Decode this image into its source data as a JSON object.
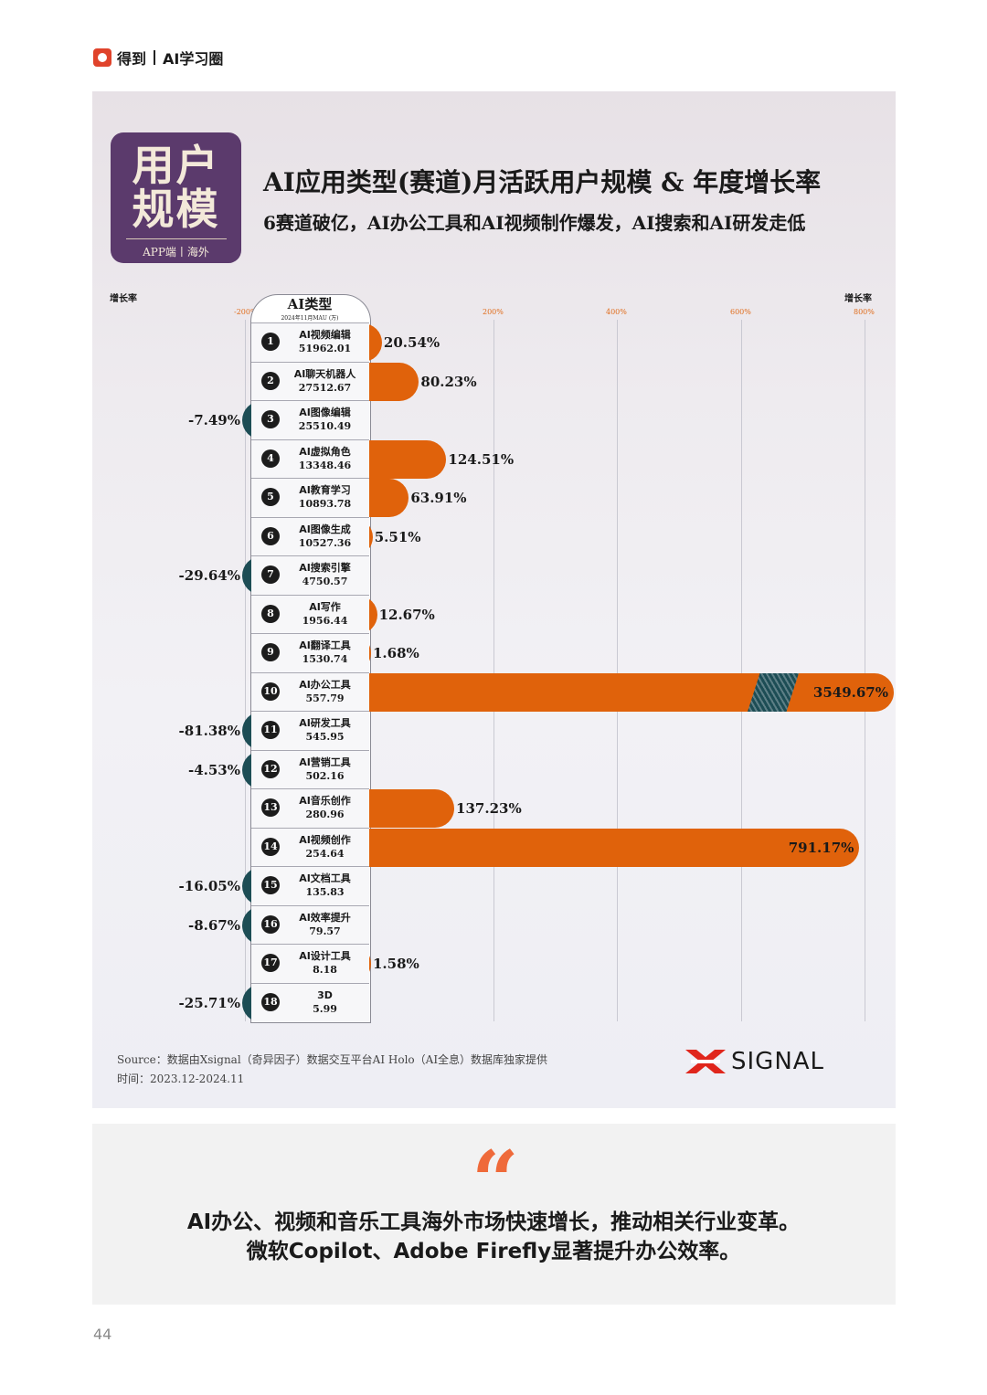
{
  "header": {
    "brand": "得到",
    "sub": "AI学习圈"
  },
  "badge": {
    "line1": "用户",
    "line2": "规模",
    "line3": "APP端丨海外"
  },
  "title": "AI应用类型(赛道)月活跃用户规模 & 年度增长率",
  "subtitle": "6赛道破亿，AI办公工具和AI视频制作爆发，AI搜索和AI研发走低",
  "column_header": {
    "title": "AI类型",
    "subtitle": "2024年11月MAU (万)"
  },
  "axis": {
    "left_title": "增长率",
    "right_title": "增长率"
  },
  "chart_data": {
    "type": "bar",
    "orientation": "horizontal",
    "title": "AI应用类型(赛道)月活跃用户规模 & 年度增长率",
    "xlabel": "增长率",
    "xlim": [
      -200,
      800
    ],
    "x_ticks": [
      "-200%",
      "200%",
      "400%",
      "600%",
      "800%"
    ],
    "tick_values": [
      -200,
      200,
      400,
      600,
      800
    ],
    "grid": true,
    "categories": [
      {
        "rank": "1",
        "name": "AI视频编辑",
        "mau": "51962.01",
        "growth": 20.54,
        "label": "20.54%"
      },
      {
        "rank": "2",
        "name": "AI聊天机器人",
        "mau": "27512.67",
        "growth": 80.23,
        "label": "80.23%"
      },
      {
        "rank": "3",
        "name": "AI图像编辑",
        "mau": "25510.49",
        "growth": -7.49,
        "label": "-7.49%"
      },
      {
        "rank": "4",
        "name": "AI虚拟角色",
        "mau": "13348.46",
        "growth": 124.51,
        "label": "124.51%"
      },
      {
        "rank": "5",
        "name": "AI教育学习",
        "mau": "10893.78",
        "growth": 63.91,
        "label": "63.91%"
      },
      {
        "rank": "6",
        "name": "AI图像生成",
        "mau": "10527.36",
        "growth": 5.51,
        "label": "5.51%"
      },
      {
        "rank": "7",
        "name": "AI搜索引擎",
        "mau": "4750.57",
        "growth": -29.64,
        "label": "-29.64%"
      },
      {
        "rank": "8",
        "name": "AI写作",
        "mau": "1956.44",
        "growth": 12.67,
        "label": "12.67%"
      },
      {
        "rank": "9",
        "name": "AI翻译工具",
        "mau": "1530.74",
        "growth": 1.68,
        "label": "1.68%"
      },
      {
        "rank": "10",
        "name": "AI办公工具",
        "mau": "557.79",
        "growth": 3549.67,
        "label": "3549.67%",
        "broken_axis": true
      },
      {
        "rank": "11",
        "name": "AI研发工具",
        "mau": "545.95",
        "growth": -81.38,
        "label": "-81.38%"
      },
      {
        "rank": "12",
        "name": "AI营销工具",
        "mau": "502.16",
        "growth": -4.53,
        "label": "-4.53%"
      },
      {
        "rank": "13",
        "name": "AI音乐创作",
        "mau": "280.96",
        "growth": 137.23,
        "label": "137.23%"
      },
      {
        "rank": "14",
        "name": "AI视频创作",
        "mau": "254.64",
        "growth": 791.17,
        "label": "791.17%"
      },
      {
        "rank": "15",
        "name": "AI文档工具",
        "mau": "135.83",
        "growth": -16.05,
        "label": "-16.05%"
      },
      {
        "rank": "16",
        "name": "AI效率提升",
        "mau": "79.57",
        "growth": -8.67,
        "label": "-8.67%"
      },
      {
        "rank": "17",
        "name": "AI设计工具",
        "mau": "8.18",
        "growth": 1.58,
        "label": "1.58%"
      },
      {
        "rank": "18",
        "name": "3D",
        "mau": "5.99",
        "growth": -25.71,
        "label": "-25.71%"
      }
    ],
    "colors": {
      "positive": "#e0620b",
      "negative": "#1d4d55",
      "tick": "#e06b1a"
    }
  },
  "footer": {
    "source": "Source：数据由Xsignal（奇异因子）数据交互平台AI Holo（AI全息）数据库独家提供",
    "period": "时间：2023.12-2024.11",
    "logo_text": "SIGNAL"
  },
  "quote": {
    "mark": "“",
    "line1": "AI办公、视频和音乐工具海外市场快速增长，推动相关行业变革。",
    "line2": "微软Copilot、Adobe Firefly显著提升办公效率。"
  },
  "page_number": "44"
}
